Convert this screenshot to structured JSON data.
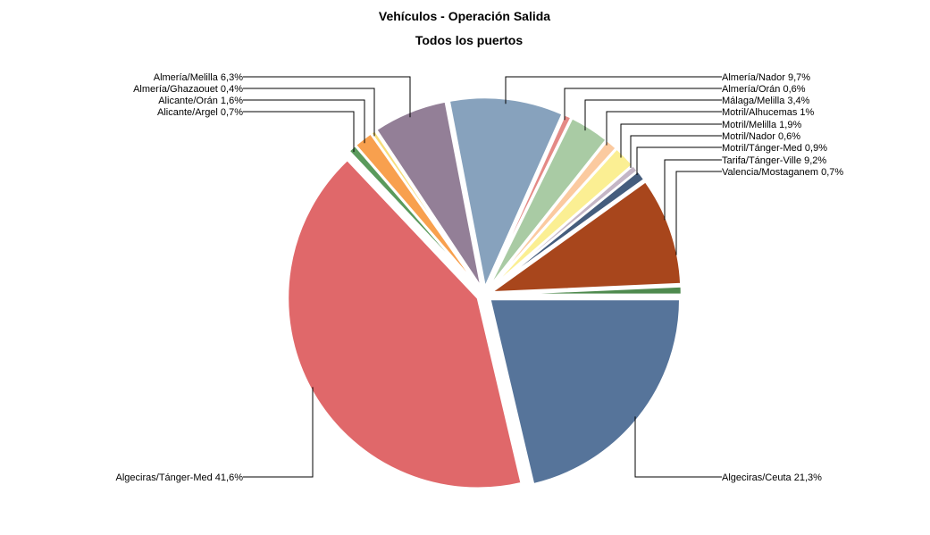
{
  "chart_data": {
    "type": "pie",
    "title": "Vehículos - Operación Salida",
    "subtitle": "Todos los puertos",
    "slices": [
      {
        "label": "Algeciras/Ceuta 21,3%",
        "value": 21.3,
        "color": "#56749a"
      },
      {
        "label": "Algeciras/Tánger-Med 41,6%",
        "value": 41.6,
        "color": "#e0686a"
      },
      {
        "label": "Alicante/Argel 0,7%",
        "value": 0.7,
        "color": "#5a9a5c"
      },
      {
        "label": "Alicante/Orán 1,6%",
        "value": 1.6,
        "color": "#f8a04e"
      },
      {
        "label": "Almería/Ghazaouet 0,4%",
        "value": 0.4,
        "color": "#f7dd7a"
      },
      {
        "label": "Almería/Melilla 6,3%",
        "value": 6.3,
        "color": "#937f97"
      },
      {
        "label": "Almería/Nador 9,7%",
        "value": 9.7,
        "color": "#87a2bd"
      },
      {
        "label": "Almería/Orán 0,6%",
        "value": 0.6,
        "color": "#e48a86"
      },
      {
        "label": "Málaga/Melilla 3,4%",
        "value": 3.4,
        "color": "#a9cba4"
      },
      {
        "label": "Motril/Alhucemas 1%",
        "value": 1.0,
        "color": "#fbcaa0"
      },
      {
        "label": "Motril/Melilla 1,9%",
        "value": 1.9,
        "color": "#fbef93"
      },
      {
        "label": "Motril/Nador 0,6%",
        "value": 0.6,
        "color": "#c4b6c6"
      },
      {
        "label": "Motril/Tánger-Med 0,9%",
        "value": 0.9,
        "color": "#455d7d"
      },
      {
        "label": "Tarifa/Tánger-Ville 9,2%",
        "value": 9.2,
        "color": "#a8461c"
      },
      {
        "label": "Valencia/Mostaganem 0,7%",
        "value": 0.7,
        "color": "#4e8a4e"
      }
    ],
    "legend": "none",
    "start_angle": "3 o'clock, clockwise"
  }
}
